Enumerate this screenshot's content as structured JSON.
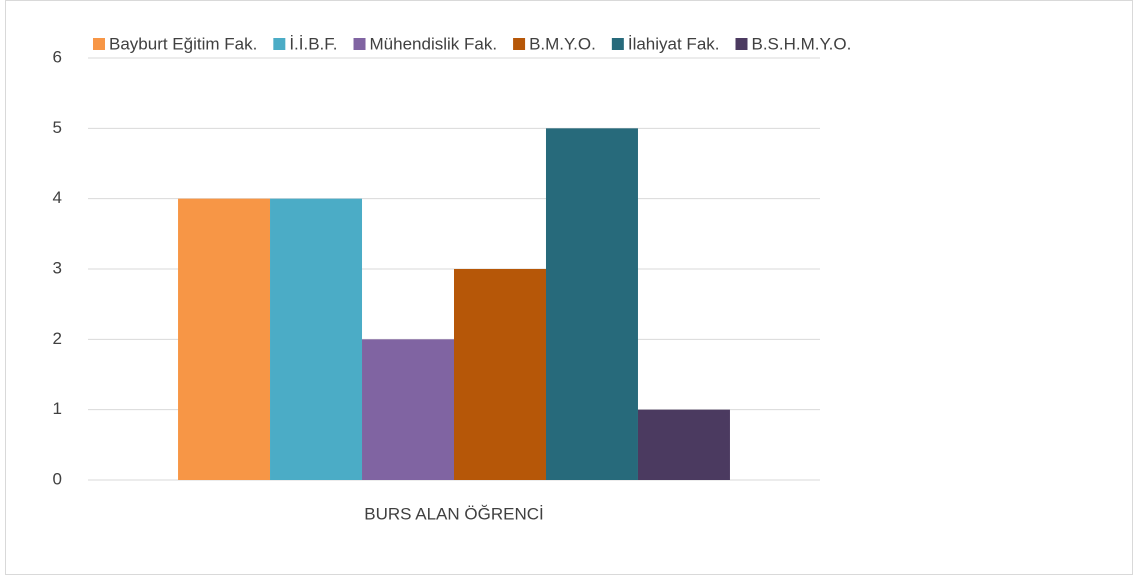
{
  "chart_data": {
    "type": "bar",
    "categories": [
      "BURS ALAN ÖĞRENCİ"
    ],
    "series": [
      {
        "name": "Bayburt Eğitim Fak.",
        "color": "#f79646",
        "values": [
          4
        ]
      },
      {
        "name": "İ.İ.B.F.",
        "color": "#4bacc6",
        "values": [
          4
        ]
      },
      {
        "name": "Mühendislik Fak.",
        "color": "#8064a2",
        "values": [
          2
        ]
      },
      {
        "name": "B.M.Y.O.",
        "color": "#b65708",
        "values": [
          3
        ]
      },
      {
        "name": "İlahiyat Fak.",
        "color": "#276a7b",
        "values": [
          5
        ]
      },
      {
        "name": "B.S.H.M.Y.O.",
        "color": "#4b3a60",
        "values": [
          1
        ]
      }
    ],
    "ylim": [
      0,
      6
    ],
    "yticks": [
      0,
      1,
      2,
      3,
      4,
      5,
      6
    ],
    "grid": true,
    "legend": "top"
  }
}
